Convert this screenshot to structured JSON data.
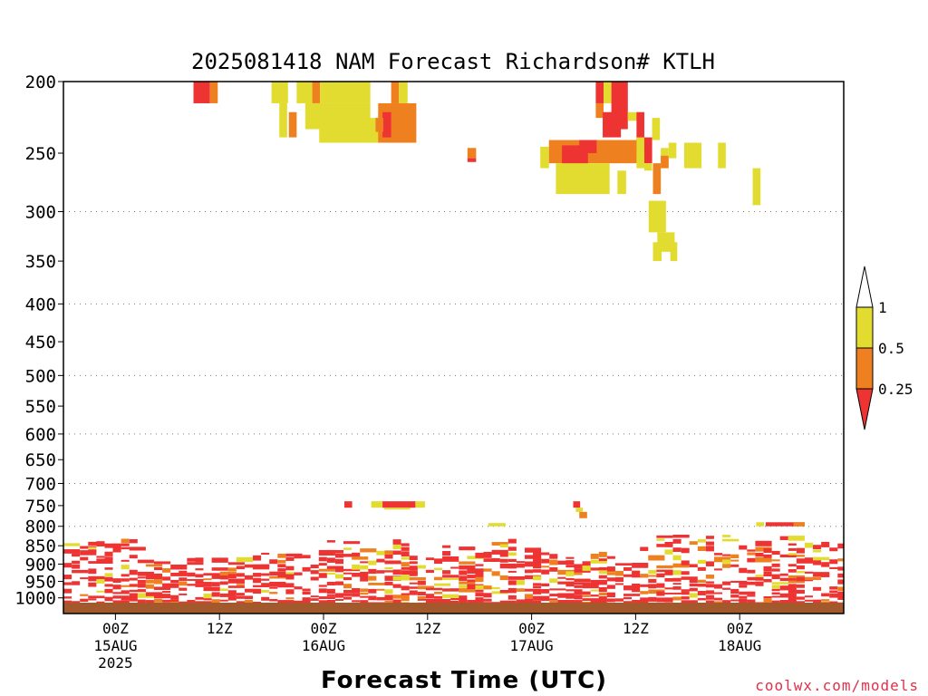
{
  "chart_data": {
    "type": "heatmap",
    "title": "2025081418 NAM Forecast Richardson# KTLH",
    "xlabel": "Forecast Time (UTC)",
    "ylabel": "",
    "credit": "coolwx.com/models",
    "y_axis": {
      "scale": "log",
      "ticks": [
        200,
        250,
        300,
        350,
        400,
        450,
        500,
        550,
        600,
        650,
        700,
        750,
        800,
        850,
        900,
        950,
        1000
      ],
      "ylim": [
        200,
        1050
      ],
      "dotted_grid_at": [
        300,
        400,
        500,
        600,
        700,
        800
      ]
    },
    "x_axis": {
      "range": [
        "2025-08-14T18Z",
        "2025-08-18T12Z"
      ],
      "ticks": [
        {
          "hour": 6,
          "line1": "00Z",
          "line2": "15AUG",
          "line3": "2025"
        },
        {
          "hour": 18,
          "line1": "12Z",
          "line2": "",
          "line3": ""
        },
        {
          "hour": 30,
          "line1": "00Z",
          "line2": "16AUG",
          "line3": ""
        },
        {
          "hour": 42,
          "line1": "12Z",
          "line2": "",
          "line3": ""
        },
        {
          "hour": 54,
          "line1": "00Z",
          "line2": "17AUG",
          "line3": ""
        },
        {
          "hour": 66,
          "line1": "12Z",
          "line2": "",
          "line3": ""
        },
        {
          "hour": 78,
          "line1": "00Z",
          "line2": "18AUG",
          "line3": ""
        }
      ]
    },
    "legend": {
      "placement": "right",
      "labels": [
        "1",
        "0.5",
        "0.25"
      ],
      "colors": {
        "low": "#ee3333",
        "mid": "#ee8020",
        "high": "#e3dc30",
        "over": "#ffffff",
        "ground": "#a2592b"
      }
    },
    "cells_note": "Richardson number shaded: red < 0.25, orange 0.25–0.5, yellow 0.5–1",
    "upper_cells": [
      {
        "t0": 15.0,
        "t1": 16.9,
        "p0": 200,
        "p1": 214,
        "c": "low"
      },
      {
        "t0": 16.9,
        "t1": 17.8,
        "p0": 200,
        "p1": 214,
        "c": "mid"
      },
      {
        "t0": 24.0,
        "t1": 25.9,
        "p0": 200,
        "p1": 214,
        "c": "high"
      },
      {
        "t0": 24.9,
        "t1": 25.8,
        "p0": 214,
        "p1": 238,
        "c": "high"
      },
      {
        "t0": 26.9,
        "t1": 28.7,
        "p0": 200,
        "p1": 214,
        "c": "high"
      },
      {
        "t0": 28.7,
        "t1": 29.6,
        "p0": 200,
        "p1": 214,
        "c": "mid"
      },
      {
        "t0": 29.6,
        "t1": 35.4,
        "p0": 200,
        "p1": 214,
        "c": "high"
      },
      {
        "t0": 26.0,
        "t1": 26.9,
        "p0": 220,
        "p1": 238,
        "c": "mid"
      },
      {
        "t0": 27.9,
        "t1": 35.4,
        "p0": 214,
        "p1": 232,
        "c": "high"
      },
      {
        "t0": 29.5,
        "t1": 40.6,
        "p0": 224,
        "p1": 242,
        "c": "high"
      },
      {
        "t0": 37.8,
        "t1": 38.7,
        "p0": 200,
        "p1": 214,
        "c": "mid"
      },
      {
        "t0": 38.7,
        "t1": 39.7,
        "p0": 200,
        "p1": 214,
        "c": "high"
      },
      {
        "t0": 36.3,
        "t1": 40.7,
        "p0": 214,
        "p1": 242,
        "c": "mid"
      },
      {
        "t0": 36.8,
        "t1": 37.8,
        "p0": 220,
        "p1": 238,
        "c": "low"
      },
      {
        "t0": 36.0,
        "t1": 36.9,
        "p0": 224,
        "p1": 234,
        "c": "mid"
      },
      {
        "t0": 46.6,
        "t1": 47.6,
        "p0": 246,
        "p1": 254,
        "c": "mid"
      },
      {
        "t0": 46.6,
        "t1": 47.6,
        "p0": 254,
        "p1": 257,
        "c": "low"
      },
      {
        "t0": 55.0,
        "t1": 56.0,
        "p0": 245,
        "p1": 262,
        "c": "high"
      },
      {
        "t0": 56.0,
        "t1": 67.0,
        "p0": 240,
        "p1": 258,
        "c": "mid"
      },
      {
        "t0": 57.5,
        "t1": 60.5,
        "p0": 244,
        "p1": 260,
        "c": "low"
      },
      {
        "t0": 59.5,
        "t1": 61.5,
        "p0": 240,
        "p1": 250,
        "c": "low"
      },
      {
        "t0": 61.4,
        "t1": 62.3,
        "p0": 214,
        "p1": 224,
        "c": "mid"
      },
      {
        "t0": 61.4,
        "t1": 62.3,
        "p0": 200,
        "p1": 214,
        "c": "low"
      },
      {
        "t0": 62.3,
        "t1": 63.2,
        "p0": 200,
        "p1": 214,
        "c": "high"
      },
      {
        "t0": 63.2,
        "t1": 65.1,
        "p0": 200,
        "p1": 232,
        "c": "low"
      },
      {
        "t0": 62.2,
        "t1": 64.3,
        "p0": 220,
        "p1": 238,
        "c": "low"
      },
      {
        "t0": 65.1,
        "t1": 67.0,
        "p0": 220,
        "p1": 226,
        "c": "high"
      },
      {
        "t0": 66.1,
        "t1": 67.0,
        "p0": 220,
        "p1": 250,
        "c": "low"
      },
      {
        "t0": 67.0,
        "t1": 67.9,
        "p0": 238,
        "p1": 258,
        "c": "low"
      },
      {
        "t0": 56.8,
        "t1": 63.0,
        "p0": 258,
        "p1": 284,
        "c": "high"
      },
      {
        "t0": 63.9,
        "t1": 64.9,
        "p0": 264,
        "p1": 284,
        "c": "high"
      },
      {
        "t0": 66.1,
        "t1": 67.0,
        "p0": 238,
        "p1": 262,
        "c": "high"
      },
      {
        "t0": 67.9,
        "t1": 68.8,
        "p0": 224,
        "p1": 240,
        "c": "high"
      },
      {
        "t0": 67.0,
        "t1": 67.9,
        "p0": 258,
        "p1": 264,
        "c": "high"
      },
      {
        "t0": 68.0,
        "t1": 68.9,
        "p0": 258,
        "p1": 284,
        "c": "mid"
      },
      {
        "t0": 68.9,
        "t1": 69.8,
        "p0": 246,
        "p1": 262,
        "c": "high"
      },
      {
        "t0": 68.9,
        "t1": 69.8,
        "p0": 252,
        "p1": 262,
        "c": "mid"
      },
      {
        "t0": 69.8,
        "t1": 70.7,
        "p0": 242,
        "p1": 254,
        "c": "high"
      },
      {
        "t0": 71.6,
        "t1": 73.6,
        "p0": 242,
        "p1": 262,
        "c": "high"
      },
      {
        "t0": 75.5,
        "t1": 76.4,
        "p0": 242,
        "p1": 262,
        "c": "high"
      },
      {
        "t0": 79.5,
        "t1": 80.4,
        "p0": 262,
        "p1": 294,
        "c": "high"
      },
      {
        "t0": 67.5,
        "t1": 69.5,
        "p0": 290,
        "p1": 320,
        "c": "high"
      },
      {
        "t0": 68.5,
        "t1": 70.5,
        "p0": 320,
        "p1": 340,
        "c": "high"
      },
      {
        "t0": 68.0,
        "t1": 69.0,
        "p0": 330,
        "p1": 350,
        "c": "high"
      },
      {
        "t0": 70.0,
        "t1": 70.8,
        "p0": 330,
        "p1": 350,
        "c": "high"
      }
    ],
    "mid_cells": [
      {
        "t0": 32.4,
        "t1": 33.3,
        "p0": 740,
        "p1": 755,
        "c": "low"
      },
      {
        "t0": 35.5,
        "t1": 36.8,
        "p0": 740,
        "p1": 755,
        "c": "high"
      },
      {
        "t0": 36.8,
        "t1": 40.6,
        "p0": 740,
        "p1": 755,
        "c": "low"
      },
      {
        "t0": 40.6,
        "t1": 41.7,
        "p0": 740,
        "p1": 755,
        "c": "high"
      },
      {
        "t0": 37.0,
        "t1": 40.0,
        "p0": 755,
        "p1": 758,
        "c": "high"
      },
      {
        "t0": 58.8,
        "t1": 59.6,
        "p0": 740,
        "p1": 755,
        "c": "low"
      },
      {
        "t0": 59.1,
        "t1": 59.9,
        "p0": 755,
        "p1": 765,
        "c": "high"
      },
      {
        "t0": 59.5,
        "t1": 60.4,
        "p0": 765,
        "p1": 780,
        "c": "mid"
      },
      {
        "t0": 49.0,
        "t1": 51.0,
        "p0": 792,
        "p1": 800,
        "c": "high"
      },
      {
        "t0": 79.9,
        "t1": 80.8,
        "p0": 790,
        "p1": 800,
        "c": "high"
      },
      {
        "t0": 81.0,
        "t1": 85.5,
        "p0": 790,
        "p1": 800,
        "c": "low"
      },
      {
        "t0": 84.2,
        "t1": 85.5,
        "p0": 790,
        "p1": 800,
        "c": "mid"
      }
    ]
  }
}
